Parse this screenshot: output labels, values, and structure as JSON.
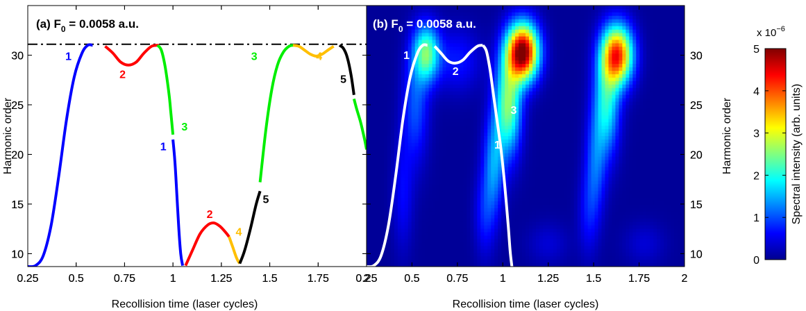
{
  "chart_data": [
    {
      "type": "line",
      "panel_label": "(a) F",
      "panel_label_sub": "0",
      "panel_label_rest": " = 0.0058 a.u.",
      "xlabel": "Recollision time (laser cycles)",
      "ylabel": "Harmonic order",
      "xlim": [
        0.25,
        2
      ],
      "ylim": [
        8.7,
        35
      ],
      "xticks": [
        "0.25",
        "0.5",
        "0.75",
        "1",
        "1.25",
        "1.5",
        "1.75",
        "2"
      ],
      "yticks": [
        "10",
        "15",
        "20",
        "25",
        "30"
      ],
      "cutoff_line": 31.1,
      "colors": {
        "1": "#0000ff",
        "2": "#ff0000",
        "3": "#00ee00",
        "4": "#ffbf00",
        "5": "#000000"
      },
      "series": [
        {
          "label": "1",
          "color": "#0000ff",
          "x": [
            0.25,
            0.29,
            0.33,
            0.37,
            0.41,
            0.45,
            0.49,
            0.53,
            0.56,
            0.585
          ],
          "y": [
            8.7,
            8.8,
            9.8,
            12.8,
            17.8,
            23.5,
            27.8,
            30.2,
            31.0,
            31.0
          ]
        },
        {
          "label": "2",
          "color": "#ff0000",
          "x": [
            0.65,
            0.69,
            0.73,
            0.77,
            0.81,
            0.85,
            0.89,
            0.93
          ],
          "y": [
            30.9,
            30.2,
            29.3,
            29.0,
            29.3,
            30.2,
            30.9,
            31.0
          ]
        },
        {
          "label": "3",
          "color": "#00ee00",
          "x": [
            0.92,
            0.94,
            0.96,
            0.98,
            0.99,
            1.0
          ],
          "y": [
            31.0,
            30.5,
            28.8,
            26.0,
            24.0,
            22.0
          ]
        },
        {
          "label": "1",
          "color": "#0000ff",
          "x": [
            1.0,
            1.01,
            1.02,
            1.03,
            1.04,
            1.05
          ],
          "y": [
            21.5,
            19.3,
            16.0,
            12.6,
            10.0,
            8.8
          ]
        },
        {
          "label": "2",
          "color": "#ff0000",
          "x": [
            1.065,
            1.1,
            1.14,
            1.18,
            1.21,
            1.24,
            1.27,
            1.29
          ],
          "y": [
            8.8,
            10.3,
            12.0,
            12.9,
            13.1,
            12.8,
            12.2,
            11.7
          ]
        },
        {
          "label": "4",
          "color": "#ffbf00",
          "x": [
            1.29,
            1.31,
            1.33,
            1.345
          ],
          "y": [
            11.7,
            10.6,
            9.5,
            9.0
          ]
        },
        {
          "label": "5",
          "color": "#000000",
          "x": [
            1.345,
            1.37,
            1.4,
            1.43,
            1.45
          ],
          "y": [
            9.0,
            10.3,
            12.5,
            15.0,
            16.3
          ]
        },
        {
          "label": "3",
          "color": "#00ee00",
          "x": [
            1.45,
            1.48,
            1.51,
            1.54,
            1.57,
            1.6,
            1.625
          ],
          "y": [
            17.2,
            22.5,
            26.5,
            29.0,
            30.3,
            30.9,
            31.0
          ]
        },
        {
          "label": "4",
          "color": "#ffbf00",
          "x": [
            1.62,
            1.65,
            1.68,
            1.71,
            1.74,
            1.77,
            1.8,
            1.83
          ],
          "y": [
            31.0,
            30.9,
            30.5,
            30.1,
            29.9,
            30.1,
            30.5,
            30.9
          ]
        },
        {
          "label": "5",
          "color": "#000000",
          "x": [
            1.86,
            1.88,
            1.9,
            1.92,
            1.935
          ],
          "y": [
            31.0,
            30.7,
            29.8,
            28.0,
            26.0
          ]
        },
        {
          "label": "3",
          "color": "#00ee00",
          "x": [
            1.935,
            1.95,
            1.97,
            1.99,
            2.0
          ],
          "y": [
            25.6,
            24.5,
            23.2,
            21.5,
            20.5
          ]
        }
      ],
      "curve_labels": [
        {
          "text": "1",
          "color": "#0000ff",
          "x": 0.46,
          "y": 29.5
        },
        {
          "text": "2",
          "color": "#ff0000",
          "x": 0.74,
          "y": 27.7
        },
        {
          "text": "3",
          "color": "#00ee00",
          "x": 1.06,
          "y": 22.4
        },
        {
          "text": "1",
          "color": "#0000ff",
          "x": 0.95,
          "y": 20.4
        },
        {
          "text": "2",
          "color": "#ff0000",
          "x": 1.19,
          "y": 13.6
        },
        {
          "text": "4",
          "color": "#ffbf00",
          "x": 1.34,
          "y": 11.8
        },
        {
          "text": "5",
          "color": "#000000",
          "x": 1.48,
          "y": 15.1
        },
        {
          "text": "3",
          "color": "#00ee00",
          "x": 1.42,
          "y": 29.5
        },
        {
          "text": "4",
          "color": "#ffbf00",
          "x": 1.755,
          "y": 29.5
        },
        {
          "text": "5",
          "color": "#000000",
          "x": 1.88,
          "y": 27.2
        }
      ]
    },
    {
      "type": "heatmap",
      "panel_label": "(b) F",
      "panel_label_sub": "0",
      "panel_label_rest": " = 0.0058 a.u.",
      "xlabel": "Recollision time (laser cycles)",
      "ylabel": "Harmonic order",
      "xlim": [
        0.25,
        2
      ],
      "ylim": [
        8.7,
        35
      ],
      "xticks": [
        "0.25",
        "0.5",
        "0.75",
        "1",
        "1.25",
        "1.5",
        "1.75",
        "2"
      ],
      "yticks": [
        "10",
        "15",
        "20",
        "25",
        "30"
      ],
      "colorbar": {
        "label": "Spectral intensity (arb. units)",
        "multiplier": "x 10",
        "multiplier_exp": "−6",
        "ticks": [
          "0",
          "1",
          "2",
          "3",
          "4",
          "5"
        ],
        "range": [
          0,
          5
        ],
        "colormap": "jet"
      },
      "overlay": {
        "color": "#ffffff",
        "curves": [
          {
            "x": [
              0.25,
              0.29,
              0.33,
              0.37,
              0.41,
              0.45,
              0.49,
              0.53,
              0.56,
              0.585
            ],
            "y": [
              8.7,
              8.8,
              9.8,
              12.8,
              17.8,
              23.5,
              27.8,
              30.2,
              31.0,
              31.0
            ]
          },
          {
            "x": [
              0.625,
              0.66,
              0.7,
              0.74,
              0.78,
              0.82,
              0.86,
              0.89
            ],
            "y": [
              30.9,
              30.2,
              29.4,
              29.2,
              29.5,
              30.3,
              30.9,
              31.0
            ]
          },
          {
            "x": [
              0.89,
              0.91,
              0.93,
              0.95,
              0.97,
              0.99,
              1.01,
              1.03,
              1.04,
              1.05
            ],
            "y": [
              31.0,
              30.4,
              28.5,
              25.8,
              23.2,
              20.5,
              17.0,
              12.8,
              10.3,
              8.7
            ]
          }
        ],
        "labels": [
          {
            "text": "1",
            "x": 0.47,
            "y": 29.6
          },
          {
            "text": "2",
            "x": 0.74,
            "y": 28.0
          },
          {
            "text": "3",
            "x": 1.06,
            "y": 24.1
          },
          {
            "text": "1",
            "x": 0.97,
            "y": 20.6
          }
        ]
      },
      "blobs": [
        {
          "x": 0.58,
          "y": 30.2,
          "sx": 0.05,
          "sy": 2.0,
          "amp": 2.2
        },
        {
          "x": 0.52,
          "y": 25.0,
          "sx": 0.05,
          "sy": 4.0,
          "amp": 0.9
        },
        {
          "x": 0.45,
          "y": 16.0,
          "sx": 0.04,
          "sy": 4.0,
          "amp": 0.5
        },
        {
          "x": 0.75,
          "y": 29.5,
          "sx": 0.09,
          "sy": 2.2,
          "amp": 0.6
        },
        {
          "x": 1.11,
          "y": 30.3,
          "sx": 0.06,
          "sy": 2.0,
          "amp": 5.0
        },
        {
          "x": 1.03,
          "y": 25.0,
          "sx": 0.05,
          "sy": 3.5,
          "amp": 2.4
        },
        {
          "x": 0.95,
          "y": 19.0,
          "sx": 0.04,
          "sy": 3.5,
          "amp": 1.2
        },
        {
          "x": 0.9,
          "y": 14.0,
          "sx": 0.04,
          "sy": 3.0,
          "amp": 0.6
        },
        {
          "x": 1.63,
          "y": 30.0,
          "sx": 0.06,
          "sy": 2.1,
          "amp": 4.0
        },
        {
          "x": 1.57,
          "y": 25.0,
          "sx": 0.05,
          "sy": 3.5,
          "amp": 1.8
        },
        {
          "x": 1.51,
          "y": 19.0,
          "sx": 0.04,
          "sy": 3.5,
          "amp": 0.9
        },
        {
          "x": 1.47,
          "y": 14.0,
          "sx": 0.04,
          "sy": 3.0,
          "amp": 0.5
        },
        {
          "x": 1.25,
          "y": 11.0,
          "sx": 0.08,
          "sy": 1.5,
          "amp": 0.3
        },
        {
          "x": 1.78,
          "y": 11.0,
          "sx": 0.08,
          "sy": 1.5,
          "amp": 0.3
        }
      ]
    }
  ]
}
